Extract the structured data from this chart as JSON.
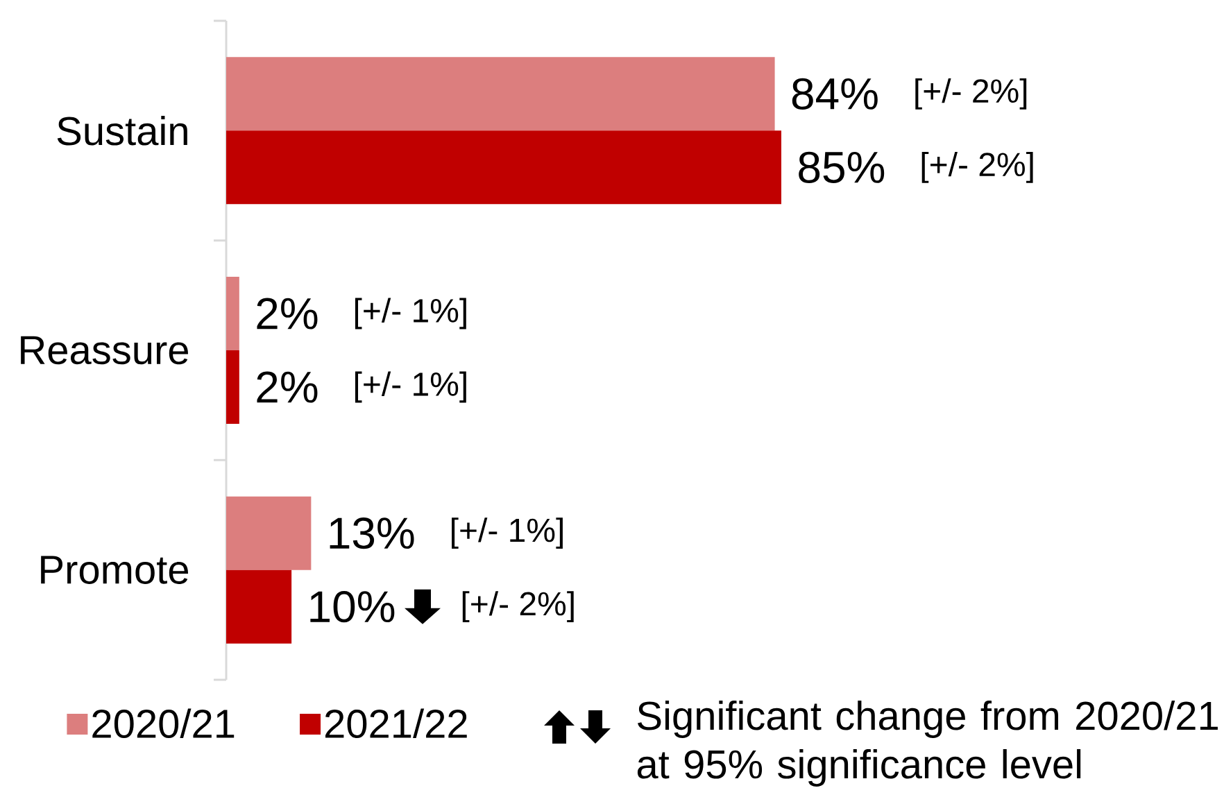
{
  "chart_data": {
    "type": "bar",
    "orientation": "horizontal",
    "categories": [
      "Sustain",
      "Reassure",
      "Promote"
    ],
    "series": [
      {
        "name": "2020/21",
        "color": "#dc7e7e",
        "values": [
          84,
          2,
          13
        ],
        "value_labels": [
          "84%",
          "2%",
          "13%"
        ]
      },
      {
        "name": "2021/22",
        "color": "#c00000",
        "values": [
          85,
          2,
          10
        ],
        "value_labels": [
          "85%",
          "2%",
          "10%"
        ]
      }
    ],
    "legend": "bottom",
    "annotations": [
      "[+/- 2%]",
      "[+/- 2%]",
      "[+/- 1%]",
      "[+/- 1%]",
      "[+/- 1%]",
      "[+/- 2%]",
      "Significant change from 2020/21 at 95% significance level"
    ]
  }
}
